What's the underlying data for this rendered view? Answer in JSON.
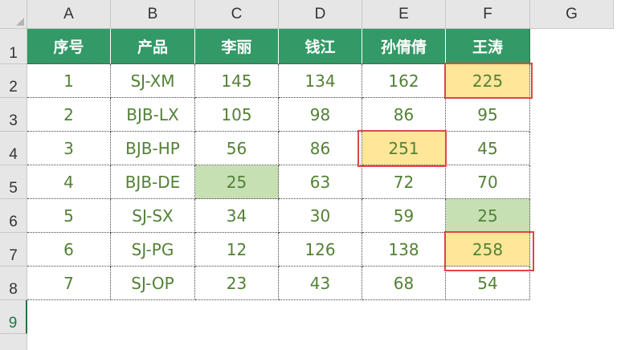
{
  "columns": [
    "A",
    "B",
    "C",
    "D",
    "E",
    "F",
    "G"
  ],
  "rows": [
    "1",
    "2",
    "3",
    "4",
    "5",
    "6",
    "7",
    "8",
    "9"
  ],
  "table": {
    "headers": [
      "序号",
      "产品",
      "李丽",
      "钱江",
      "孙倩倩",
      "王涛"
    ],
    "rows": [
      [
        "1",
        "SJ-XM",
        "145",
        "134",
        "162",
        "225"
      ],
      [
        "2",
        "BJB-LX",
        "105",
        "98",
        "86",
        "95"
      ],
      [
        "3",
        "BJB-HP",
        "56",
        "86",
        "251",
        "45"
      ],
      [
        "4",
        "BJB-DE",
        "25",
        "63",
        "72",
        "70"
      ],
      [
        "5",
        "SJ-SX",
        "34",
        "30",
        "59",
        "25"
      ],
      [
        "6",
        "SJ-PG",
        "12",
        "126",
        "138",
        "258"
      ],
      [
        "7",
        "SJ-OP",
        "23",
        "43",
        "68",
        "54"
      ]
    ]
  },
  "highlights": {
    "max_fill": "#ffe699",
    "min_fill": "#c6e0b4",
    "box_color": "#e04646",
    "header_fill": "#339966",
    "text_color": "#538135"
  }
}
